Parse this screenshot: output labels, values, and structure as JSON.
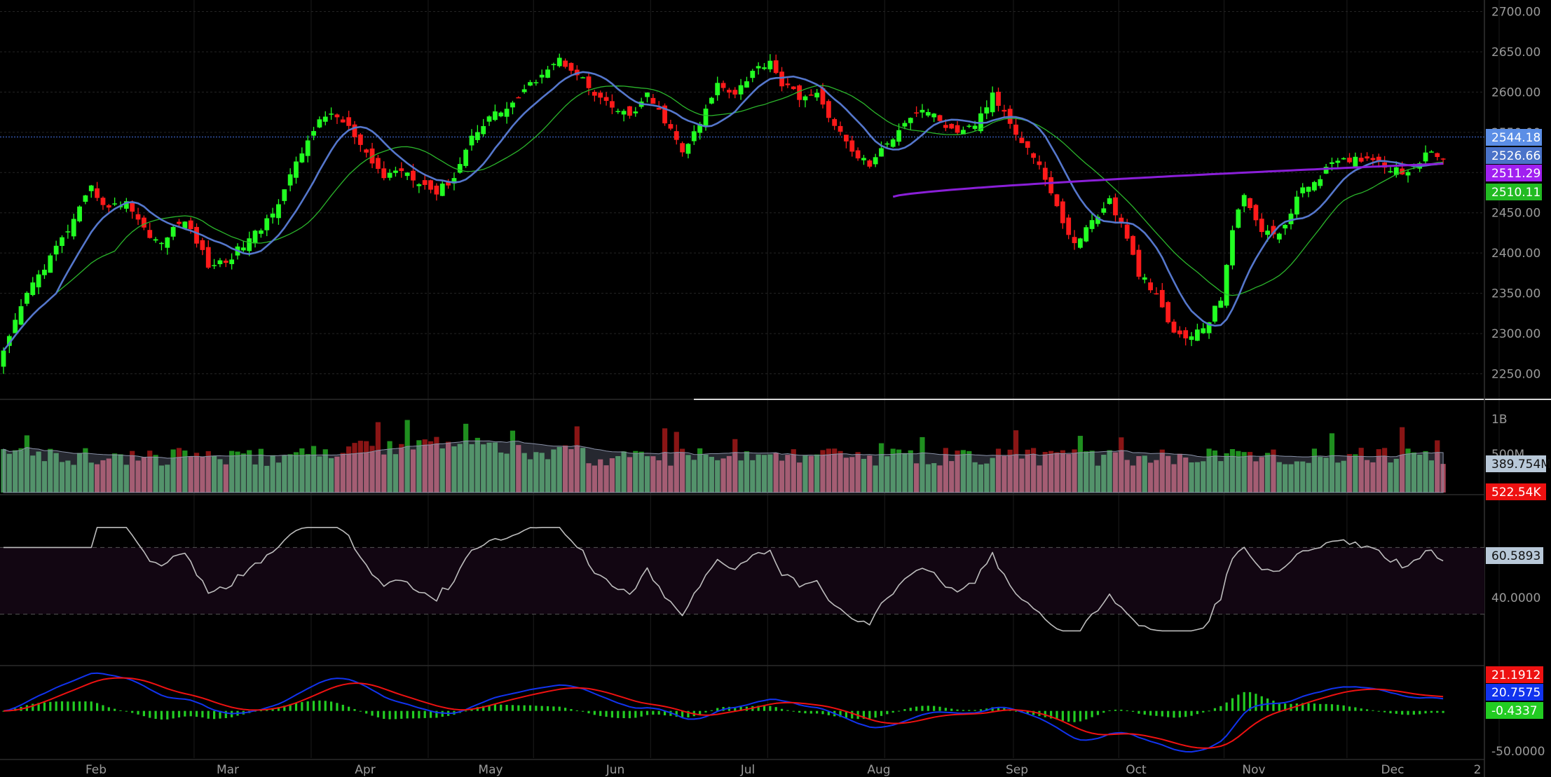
{
  "chart_data": {
    "type": "candlestick",
    "title": "",
    "x_labels": [
      "Feb",
      "Mar",
      "Apr",
      "May",
      "Jun",
      "Jul",
      "Aug",
      "Sep",
      "Oct",
      "Nov",
      "Dec",
      "2"
    ],
    "price": {
      "ylim": [
        2220,
        2710
      ],
      "ticks": [
        "2700.00",
        "2650.00",
        "2600.00",
        "2550.00",
        "2500.00",
        "2450.00",
        "2400.00",
        "2350.00",
        "2300.00",
        "2250.00"
      ],
      "tick_values": [
        2700,
        2650,
        2600,
        2550,
        2500,
        2450,
        2400,
        2350,
        2300,
        2250
      ],
      "horizontal_line": 2544.18,
      "tags": [
        {
          "label": "2544.18",
          "value": 2544.18,
          "color": "#5b8ee6",
          "text_color": "#ffffff"
        },
        {
          "label": "2526.66",
          "value": 2526.66,
          "color": "#4a73c9",
          "text_color": "#ffffff"
        },
        {
          "label": "2511.29",
          "value": 2511.29,
          "color": "#a020f0",
          "text_color": "#ffffff"
        },
        {
          "label": "2510.11",
          "value": 2510.11,
          "color": "#22bb22",
          "text_color": "#ffffff"
        }
      ],
      "close_anchors": [
        [
          0,
          2275
        ],
        [
          4,
          2350
        ],
        [
          8,
          2395
        ],
        [
          12,
          2440
        ],
        [
          15,
          2480
        ],
        [
          18,
          2455
        ],
        [
          21,
          2465
        ],
        [
          24,
          2430
        ],
        [
          27,
          2410
        ],
        [
          30,
          2440
        ],
        [
          32,
          2430
        ],
        [
          35,
          2385
        ],
        [
          38,
          2390
        ],
        [
          41,
          2410
        ],
        [
          44,
          2430
        ],
        [
          47,
          2465
        ],
        [
          50,
          2510
        ],
        [
          53,
          2555
        ],
        [
          56,
          2575
        ],
        [
          59,
          2555
        ],
        [
          62,
          2520
        ],
        [
          65,
          2495
        ],
        [
          68,
          2505
        ],
        [
          71,
          2490
        ],
        [
          74,
          2475
        ],
        [
          77,
          2495
        ],
        [
          80,
          2545
        ],
        [
          83,
          2570
        ],
        [
          86,
          2580
        ],
        [
          89,
          2600
        ],
        [
          92,
          2625
        ],
        [
          95,
          2640
        ],
        [
          98,
          2625
        ],
        [
          101,
          2595
        ],
        [
          104,
          2580
        ],
        [
          107,
          2570
        ],
        [
          110,
          2595
        ],
        [
          113,
          2565
        ],
        [
          116,
          2525
        ],
        [
          119,
          2560
        ],
        [
          122,
          2610
        ],
        [
          125,
          2600
        ],
        [
          128,
          2625
        ],
        [
          131,
          2640
        ],
        [
          133,
          2610
        ],
        [
          136,
          2595
        ],
        [
          139,
          2595
        ],
        [
          142,
          2560
        ],
        [
          145,
          2525
        ],
        [
          148,
          2510
        ],
        [
          151,
          2535
        ],
        [
          154,
          2565
        ],
        [
          157,
          2580
        ],
        [
          160,
          2565
        ],
        [
          163,
          2545
        ],
        [
          166,
          2560
        ],
        [
          169,
          2595
        ],
        [
          171,
          2575
        ],
        [
          174,
          2540
        ],
        [
          177,
          2510
        ],
        [
          180,
          2455
        ],
        [
          183,
          2410
        ],
        [
          186,
          2440
        ],
        [
          189,
          2465
        ],
        [
          191,
          2435
        ],
        [
          194,
          2375
        ],
        [
          197,
          2345
        ],
        [
          200,
          2300
        ],
        [
          203,
          2295
        ],
        [
          206,
          2315
        ],
        [
          208,
          2345
        ],
        [
          210,
          2430
        ],
        [
          212,
          2470
        ],
        [
          215,
          2430
        ],
        [
          218,
          2420
        ],
        [
          221,
          2470
        ],
        [
          224,
          2490
        ],
        [
          227,
          2510
        ],
        [
          230,
          2515
        ],
        [
          233,
          2520
        ],
        [
          236,
          2510
        ],
        [
          239,
          2500
        ],
        [
          242,
          2515
        ],
        [
          244,
          2525
        ],
        [
          246,
          2520
        ]
      ],
      "ma_fast_label": "blue 10-period average",
      "ma_slow_label": "green 20-period average",
      "ma_long_label": "purple long-period average"
    },
    "volume": {
      "ticks": [
        "1B",
        "500M"
      ],
      "tags": [
        {
          "label": "389.754M",
          "color": "#b8c8d8",
          "text_color": "#111111"
        },
        {
          "label": "522.54K",
          "color": "#ee1111",
          "text_color": "#ffffff"
        }
      ]
    },
    "rsi": {
      "ylim": [
        0,
        100
      ],
      "bands": [
        70,
        30
      ],
      "ticks": [
        "40.0000"
      ],
      "tick_values": [
        40
      ],
      "tag": {
        "label": "60.5893",
        "value": 60.5893,
        "color": "#b8c8d8",
        "text_color": "#111111"
      }
    },
    "macd": {
      "ylim": [
        -60,
        55
      ],
      "ticks": [
        "-50.0000"
      ],
      "tick_values": [
        -50
      ],
      "tags": [
        {
          "label": "21.1912",
          "value": 21.19,
          "color": "#ee1111",
          "text_color": "#ffffff"
        },
        {
          "label": "20.7575",
          "value": 20.76,
          "color": "#1133ee",
          "text_color": "#ffffff"
        },
        {
          "label": "-0.4337",
          "value": -0.43,
          "color": "#22cc22",
          "text_color": "#ffffff"
        }
      ]
    }
  }
}
